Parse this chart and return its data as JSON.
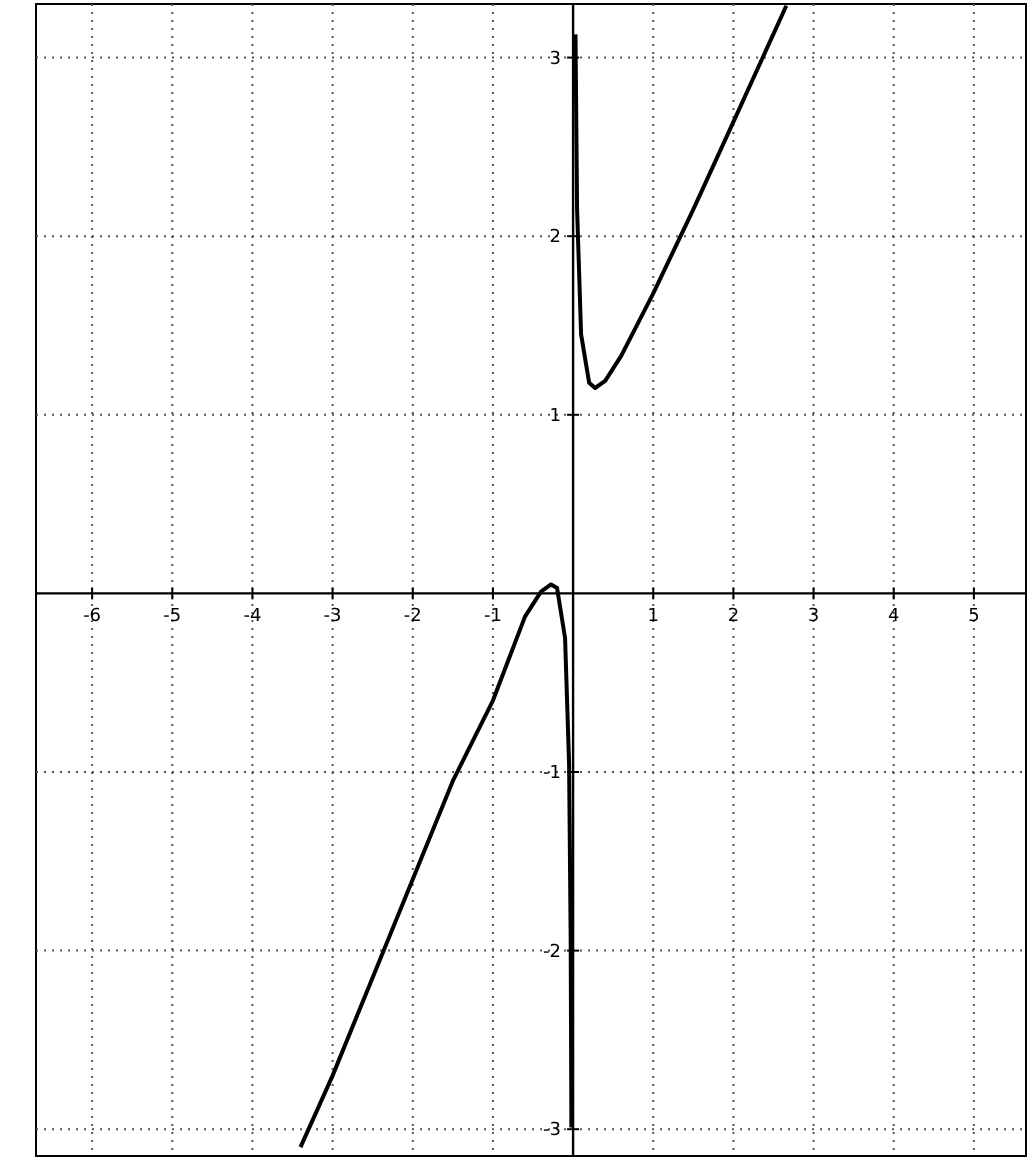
{
  "chart_data": {
    "type": "line",
    "xlim": [
      -6.7,
      5.65
    ],
    "ylim": [
      -3.15,
      3.3
    ],
    "xticks": [
      -6,
      -5,
      -4,
      -3,
      -2,
      -1,
      1,
      2,
      3,
      4,
      5
    ],
    "yticks": [
      -3,
      -2,
      -1,
      1,
      2,
      3
    ],
    "grid": true,
    "marker": "none",
    "line_style": "solid",
    "series": [
      {
        "color": "#000000",
        "x": [
          -3.4,
          -3,
          -2.5,
          -2,
          -1.5,
          -1,
          -0.6,
          -0.4,
          -0.275,
          -0.2,
          -0.1,
          -0.05,
          -0.03,
          -0.021,
          null,
          0.03,
          0.05,
          0.1,
          0.2,
          0.275,
          0.4,
          0.6,
          1,
          1.5,
          2,
          2.66
        ],
        "values": [
          -3.1,
          -2.7,
          -2.15,
          -1.6,
          -1.05,
          -0.6,
          -0.13,
          0.01,
          0.05,
          0.03,
          -0.25,
          -0.95,
          -1.93,
          -2.99,
          null,
          3.13,
          2.15,
          1.45,
          1.18,
          1.15,
          1.19,
          1.33,
          1.68,
          2.15,
          2.64,
          3.29
        ]
      }
    ]
  }
}
